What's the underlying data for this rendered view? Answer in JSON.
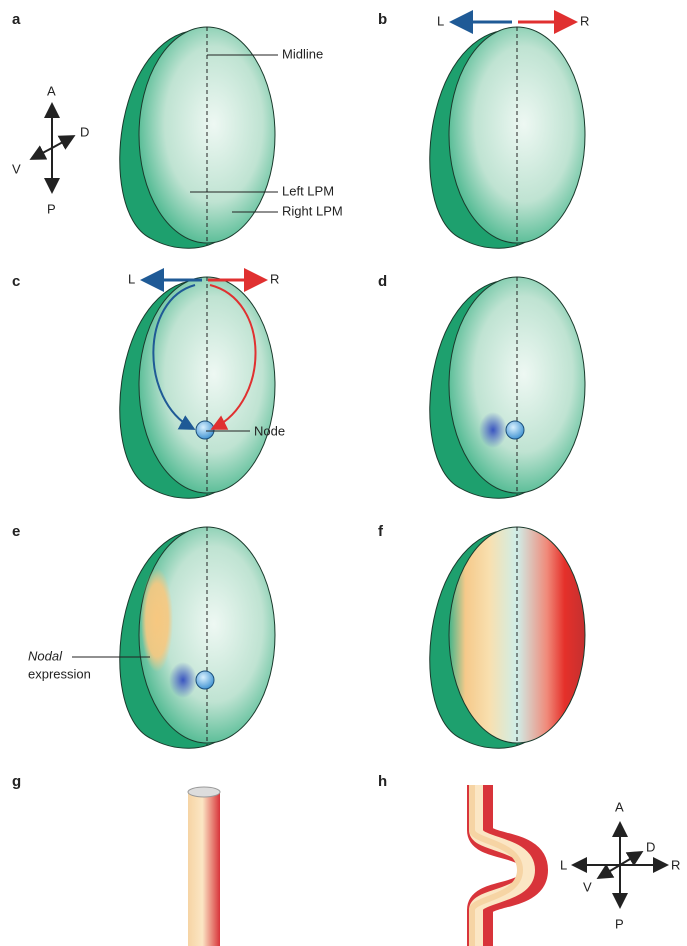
{
  "panels": [
    "a",
    "b",
    "c",
    "d",
    "e",
    "f",
    "g",
    "h"
  ],
  "annotations": {
    "midline": "Midline",
    "left_lpm": "Left LPM",
    "right_lpm": "Right LPM",
    "node": "Node",
    "nodal": "Nodal",
    "expression": "expression"
  },
  "axes_a": {
    "anterior": "A",
    "posterior": "P",
    "dorsal": "D",
    "ventral": "V"
  },
  "flow_b": {
    "left": "L",
    "right": "R"
  },
  "flow_c": {
    "left": "L",
    "right": "R"
  },
  "axes_h": {
    "anterior": "A",
    "posterior": "P",
    "dorsal": "D",
    "ventral": "V",
    "left": "L",
    "right": "R"
  }
}
